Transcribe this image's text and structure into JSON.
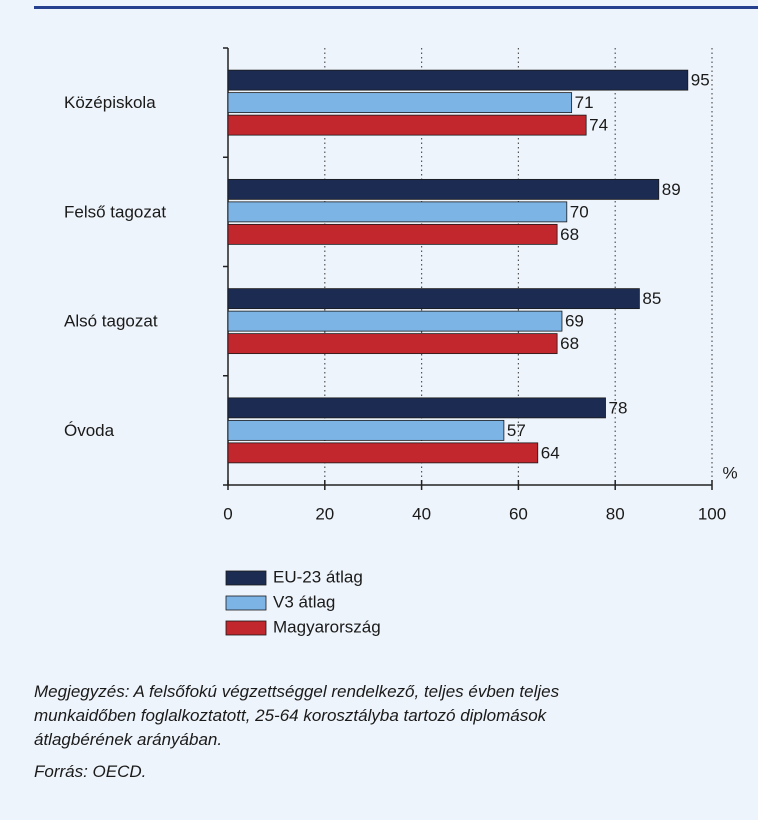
{
  "chart_data": {
    "type": "bar",
    "orientation": "horizontal",
    "categories": [
      "Középiskola",
      "Felső tagozat",
      "Alsó tagozat",
      "Óvoda"
    ],
    "series": [
      {
        "name": "EU-23 átlag",
        "color": "#1c2b52",
        "values": [
          95,
          89,
          85,
          78
        ]
      },
      {
        "name": "V3 átlag",
        "color": "#7db4e6",
        "values": [
          71,
          70,
          69,
          57
        ]
      },
      {
        "name": "Magyarország",
        "color": "#c1272d",
        "values": [
          74,
          68,
          68,
          64
        ]
      }
    ],
    "xlim": [
      0,
      100
    ],
    "xticks": [
      0,
      20,
      40,
      60,
      80,
      100
    ],
    "x_unit_label": "%",
    "grid": "dotted",
    "legend": "bottom-left",
    "notes": [
      "Megjegyzés: A felsőfokú végzettséggel rendelkező, teljes évben teljes",
      "munkaidőben foglalkoztatott, 25-64 korosztályba tartozó diplomások",
      "átlagbérének arányában."
    ],
    "source": "Forrás: OECD."
  }
}
